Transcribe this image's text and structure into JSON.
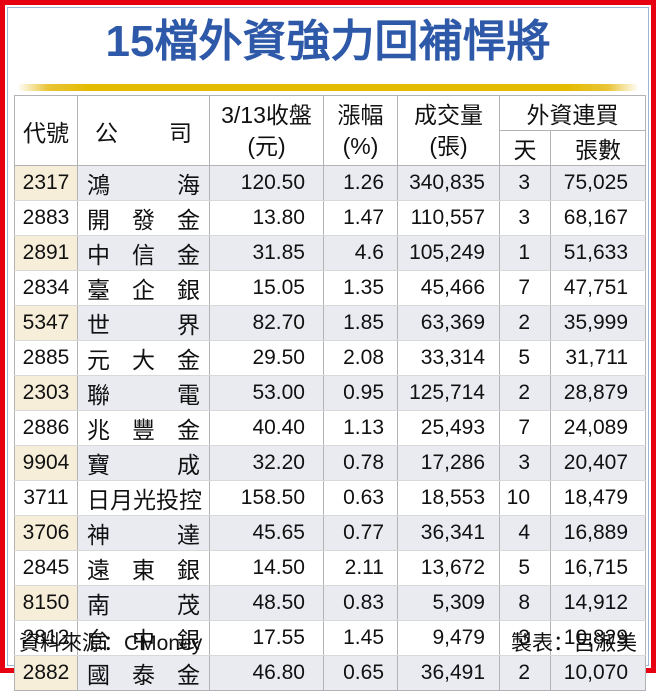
{
  "title": "15檔外資強力回補悍將",
  "footer": {
    "source": "資料來源：CMoney",
    "credit": "製表：呂淑美"
  },
  "colors": {
    "frame_red": "#e70012",
    "inner_border_blue": "#9eb5d3",
    "title_blue": "#2d59a8",
    "gold_divider": "#e3bb00",
    "odd_row_code_bg": "#f6eed8",
    "odd_row_bg": "#e9ebf1",
    "grid_line": "#b3b3b3"
  },
  "chart_data": {
    "type": "table",
    "title": "15檔外資強力回補悍將",
    "header": {
      "code": "代號",
      "company": "公司",
      "close_line1": "3/13收盤",
      "close_line2": "(元)",
      "change_line1": "漲幅",
      "change_line2": "(%)",
      "volume_line1": "成交量",
      "volume_line2": "(張)",
      "foreign_group": "外資連買",
      "days": "天",
      "lots": "張數"
    },
    "rows": [
      {
        "code": "2317",
        "company": "鴻海",
        "close": "120.50",
        "change": "1.26",
        "volume": "340,835",
        "days": "3",
        "lots": "75,025"
      },
      {
        "code": "2883",
        "company": "開發金",
        "close": "13.80",
        "change": "1.47",
        "volume": "110,557",
        "days": "3",
        "lots": "68,167"
      },
      {
        "code": "2891",
        "company": "中信金",
        "close": "31.85",
        "change": "4.6",
        "volume": "105,249",
        "days": "1",
        "lots": "51,633"
      },
      {
        "code": "2834",
        "company": "臺企銀",
        "close": "15.05",
        "change": "1.35",
        "volume": "45,466",
        "days": "7",
        "lots": "47,751"
      },
      {
        "code": "5347",
        "company": "世界",
        "close": "82.70",
        "change": "1.85",
        "volume": "63,369",
        "days": "2",
        "lots": "35,999"
      },
      {
        "code": "2885",
        "company": "元大金",
        "close": "29.50",
        "change": "2.08",
        "volume": "33,314",
        "days": "5",
        "lots": "31,711"
      },
      {
        "code": "2303",
        "company": "聯電",
        "close": "53.00",
        "change": "0.95",
        "volume": "125,714",
        "days": "2",
        "lots": "28,879"
      },
      {
        "code": "2886",
        "company": "兆豐金",
        "close": "40.40",
        "change": "1.13",
        "volume": "25,493",
        "days": "7",
        "lots": "24,089"
      },
      {
        "code": "9904",
        "company": "寶成",
        "close": "32.20",
        "change": "0.78",
        "volume": "17,286",
        "days": "3",
        "lots": "20,407"
      },
      {
        "code": "3711",
        "company": "日月光投控",
        "close": "158.50",
        "change": "0.63",
        "volume": "18,553",
        "days": "10",
        "lots": "18,479"
      },
      {
        "code": "3706",
        "company": "神達",
        "close": "45.65",
        "change": "0.77",
        "volume": "36,341",
        "days": "4",
        "lots": "16,889"
      },
      {
        "code": "2845",
        "company": "遠東銀",
        "close": "14.50",
        "change": "2.11",
        "volume": "13,672",
        "days": "5",
        "lots": "16,715"
      },
      {
        "code": "8150",
        "company": "南茂",
        "close": "48.50",
        "change": "0.83",
        "volume": "5,309",
        "days": "8",
        "lots": "14,912"
      },
      {
        "code": "2812",
        "company": "台中銀",
        "close": "17.55",
        "change": "1.45",
        "volume": "9,479",
        "days": "3",
        "lots": "10,829"
      },
      {
        "code": "2882",
        "company": "國泰金",
        "close": "46.80",
        "change": "0.65",
        "volume": "36,491",
        "days": "2",
        "lots": "10,070"
      }
    ]
  }
}
